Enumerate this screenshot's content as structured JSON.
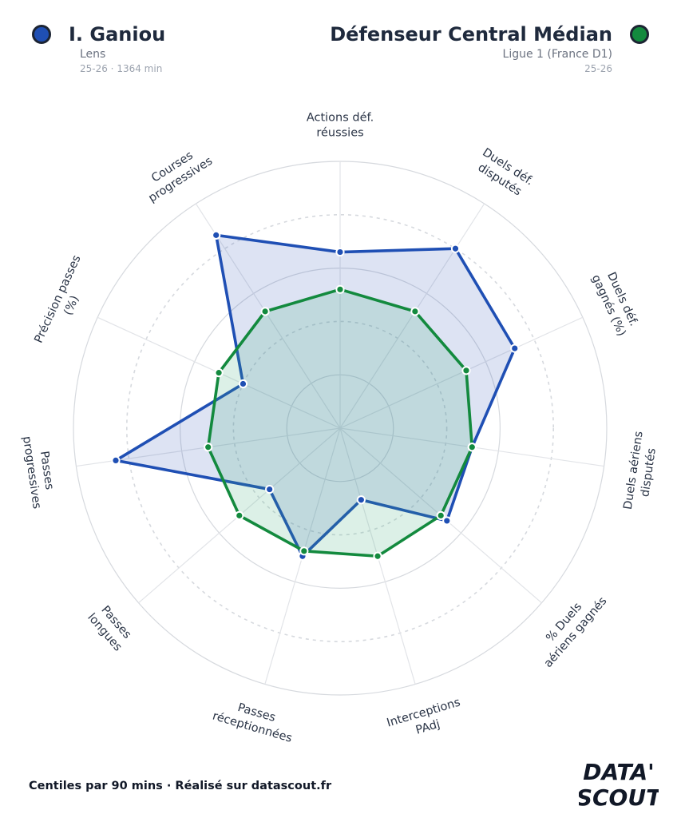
{
  "player": {
    "name": "I. Ganiou",
    "club": "Lens",
    "details": "25-26 · 1364 min",
    "color": "#1f4fb4"
  },
  "comparison": {
    "name": "Défenseur Central Médian",
    "league": "Ligue 1 (France D1)",
    "season": "25-26",
    "color": "#138a3e"
  },
  "footer_text": "Centiles par 90 mins · Réalisé sur datascout.fr",
  "logo": {
    "line1": "DATA'",
    "line2": "SCOUT"
  },
  "chart_data": {
    "type": "radar",
    "scale": [
      0,
      100
    ],
    "categories": [
      [
        "Actions déf.",
        "réussies"
      ],
      [
        "Duels déf.",
        "disputés"
      ],
      [
        "Duels déf.",
        "gagnés (%)"
      ],
      [
        "Duels aériens",
        "disputés"
      ],
      [
        "% Duels",
        "aériens gagnés"
      ],
      [
        "Interceptions",
        "PAdj"
      ],
      [
        "Passes",
        "réceptionnées"
      ],
      [
        "Passes",
        "longues"
      ],
      [
        "Passes",
        "progressives"
      ],
      [
        "Précision passes",
        "(%)"
      ],
      [
        "Courses",
        "progressives"
      ]
    ],
    "series": [
      {
        "name": "I. Ganiou",
        "values": [
          66,
          80,
          72,
          50,
          53,
          28,
          50,
          35,
          85,
          40,
          86
        ]
      },
      {
        "name": "Défenseur Central Médian",
        "values": [
          52,
          52,
          52,
          50,
          50,
          50,
          48,
          50,
          50,
          50,
          52
        ]
      }
    ]
  }
}
